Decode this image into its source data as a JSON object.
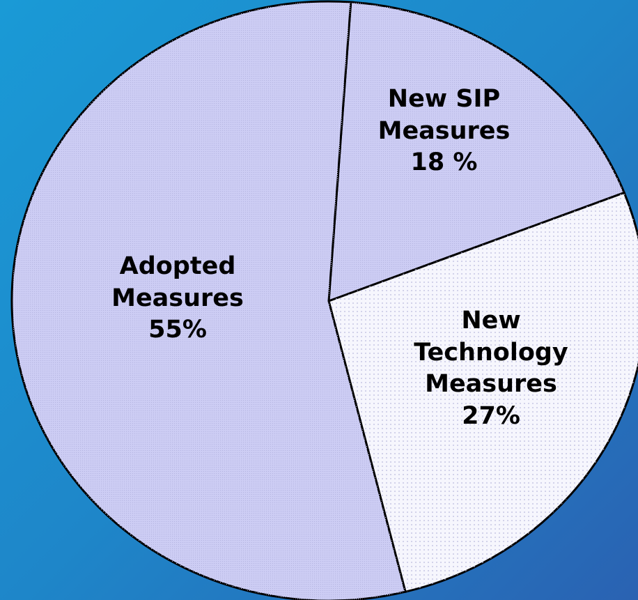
{
  "chart_data": {
    "type": "pie",
    "categories": [
      "New SIP Measures",
      "New Technology Measures",
      "Adopted Measures"
    ],
    "values": [
      18,
      27,
      55
    ],
    "value_labels": [
      "18 %",
      "27%",
      "55%"
    ],
    "colors": [
      "#cdcdf4",
      "#f6f6fd",
      "#cdcdf4"
    ]
  }
}
